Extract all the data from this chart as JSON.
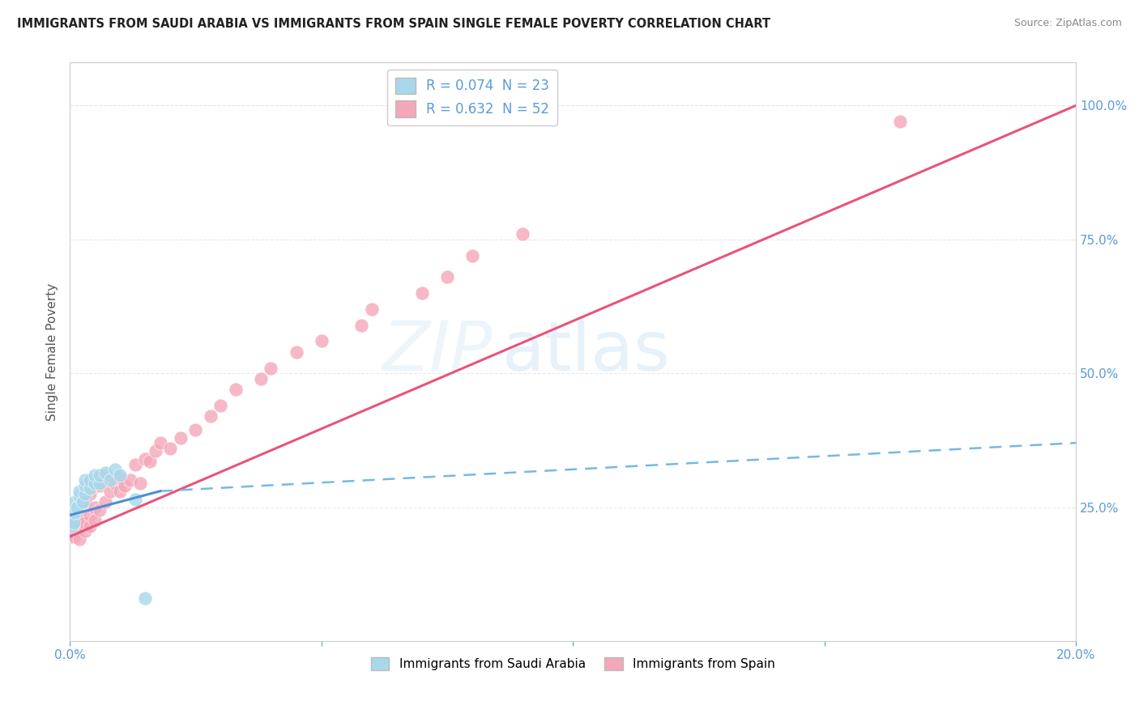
{
  "title": "IMMIGRANTS FROM SAUDI ARABIA VS IMMIGRANTS FROM SPAIN SINGLE FEMALE POVERTY CORRELATION CHART",
  "source": "Source: ZipAtlas.com",
  "ylabel": "Single Female Poverty",
  "legend_entries": [
    {
      "label": "R = 0.074  N = 23",
      "color": "#a8d8ea"
    },
    {
      "label": "R = 0.632  N = 52",
      "color": "#f4a7b9"
    }
  ],
  "saudi_scatter": {
    "color": "#a8d8ea",
    "x": [
      0.0005,
      0.0008,
      0.001,
      0.001,
      0.0015,
      0.002,
      0.002,
      0.0025,
      0.003,
      0.003,
      0.003,
      0.004,
      0.004,
      0.005,
      0.005,
      0.006,
      0.006,
      0.007,
      0.008,
      0.009,
      0.01,
      0.013,
      0.015
    ],
    "y": [
      0.215,
      0.22,
      0.24,
      0.26,
      0.25,
      0.27,
      0.28,
      0.26,
      0.275,
      0.29,
      0.3,
      0.285,
      0.3,
      0.295,
      0.31,
      0.295,
      0.31,
      0.315,
      0.3,
      0.32,
      0.31,
      0.265,
      0.08
    ]
  },
  "spain_scatter": {
    "color": "#f4a7b9",
    "x": [
      0.0003,
      0.0005,
      0.0007,
      0.001,
      0.001,
      0.0012,
      0.0015,
      0.002,
      0.002,
      0.002,
      0.003,
      0.003,
      0.003,
      0.004,
      0.004,
      0.004,
      0.005,
      0.005,
      0.005,
      0.006,
      0.006,
      0.007,
      0.007,
      0.008,
      0.009,
      0.01,
      0.01,
      0.011,
      0.012,
      0.013,
      0.014,
      0.015,
      0.016,
      0.017,
      0.018,
      0.02,
      0.022,
      0.025,
      0.028,
      0.03,
      0.033,
      0.038,
      0.04,
      0.045,
      0.05,
      0.058,
      0.06,
      0.07,
      0.075,
      0.08,
      0.09,
      0.165
    ],
    "y": [
      0.195,
      0.2,
      0.21,
      0.195,
      0.22,
      0.215,
      0.225,
      0.19,
      0.215,
      0.24,
      0.205,
      0.22,
      0.26,
      0.215,
      0.235,
      0.275,
      0.225,
      0.25,
      0.29,
      0.245,
      0.29,
      0.26,
      0.31,
      0.28,
      0.295,
      0.28,
      0.305,
      0.29,
      0.3,
      0.33,
      0.295,
      0.34,
      0.335,
      0.355,
      0.37,
      0.36,
      0.38,
      0.395,
      0.42,
      0.44,
      0.47,
      0.49,
      0.51,
      0.54,
      0.56,
      0.59,
      0.62,
      0.65,
      0.68,
      0.72,
      0.76,
      0.97
    ]
  },
  "saudi_trendline_solid": {
    "color": "#4a90d9",
    "x": [
      0.0,
      0.018
    ],
    "y": [
      0.235,
      0.28
    ]
  },
  "saudi_trendline_dashed": {
    "color": "#74b8e8",
    "x": [
      0.018,
      0.2
    ],
    "y": [
      0.28,
      0.37
    ]
  },
  "spain_trendline": {
    "color": "#e8547a",
    "x": [
      0.0,
      0.2
    ],
    "y": [
      0.195,
      1.0
    ]
  },
  "background_color": "#ffffff",
  "grid_color": "#e8e8e8",
  "title_color": "#222222",
  "axis_color": "#5b9bd5",
  "xlim": [
    0.0,
    0.2
  ],
  "ylim": [
    0.0,
    1.08
  ]
}
